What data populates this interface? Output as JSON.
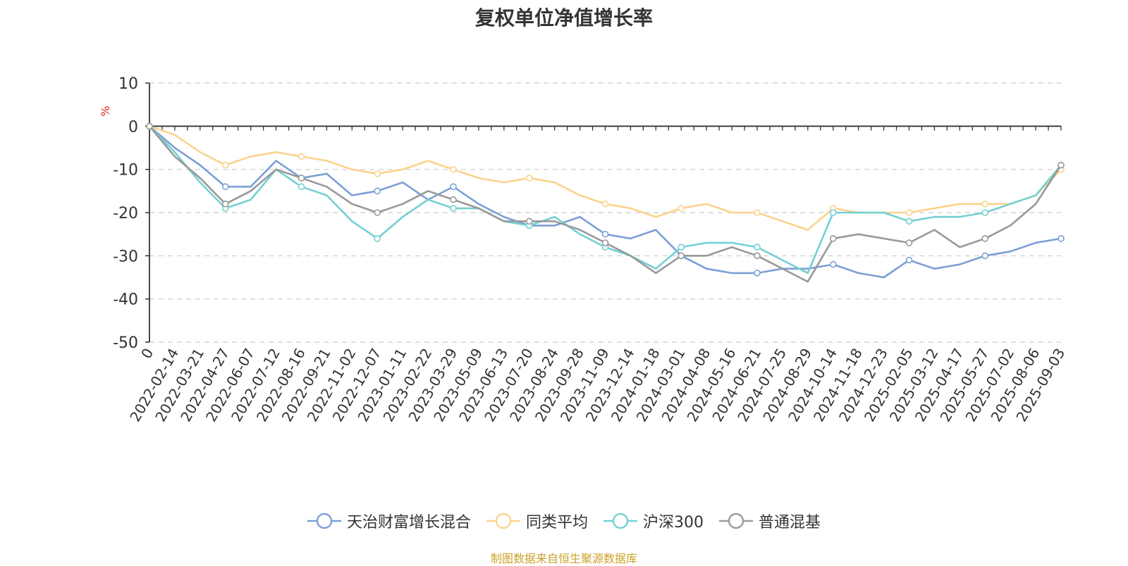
{
  "chart_data": {
    "type": "line",
    "title": "复权单位净值增长率",
    "ylabel": "%",
    "source": "制图数据来自恒生聚源数据库",
    "ylim": [
      -50,
      10
    ],
    "yticks": [
      10,
      0,
      -10,
      -20,
      -30,
      -40,
      -50
    ],
    "grid": true,
    "legend_position": "bottom",
    "x_ticks": [
      "0",
      "2022-02-14",
      "2022-03-21",
      "2022-04-27",
      "2022-06-07",
      "2022-07-12",
      "2022-08-16",
      "2022-09-21",
      "2022-11-02",
      "2022-12-07",
      "2023-01-11",
      "2023-02-22",
      "2023-03-29",
      "2023-05-09",
      "2023-06-13",
      "2023-07-20",
      "2023-08-24",
      "2023-09-28",
      "2023-11-09",
      "2023-12-14",
      "2024-01-18",
      "2024-03-01",
      "2024-04-08",
      "2024-05-16",
      "2024-06-21",
      "2024-07-25",
      "2024-08-29",
      "2024-10-14",
      "2024-11-18",
      "2024-12-23",
      "2025-02-05",
      "2025-03-12",
      "2025-04-17",
      "2025-05-27",
      "2025-07-02",
      "2025-08-06",
      "2025-09-03"
    ],
    "series": [
      {
        "name": "天治财富增长混合",
        "color": "#7b9fd6",
        "values": [
          0,
          -5,
          -9,
          -14,
          -14,
          -8,
          -12,
          -11,
          -16,
          -15,
          -13,
          -17,
          -14,
          -18,
          -21,
          -23,
          -23,
          -21,
          -25,
          -26,
          -24,
          -30,
          -33,
          -34,
          -34,
          -33,
          -33,
          -32,
          -34,
          -35,
          -31,
          -33,
          -32,
          -30,
          -29,
          -27,
          -26
        ]
      },
      {
        "name": "同类平均",
        "color": "#fcd28c",
        "values": [
          0,
          -2,
          -6,
          -9,
          -7,
          -6,
          -7,
          -8,
          -10,
          -11,
          -10,
          -8,
          -10,
          -12,
          -13,
          -12,
          -13,
          -16,
          -18,
          -19,
          -21,
          -19,
          -18,
          -20,
          -20,
          -22,
          -24,
          -19,
          -20,
          -20,
          -20,
          -19,
          -18,
          -18,
          -18,
          -16,
          -10
        ]
      },
      {
        "name": "沪深300",
        "color": "#73d0d2",
        "values": [
          0,
          -6,
          -13,
          -19,
          -17,
          -10,
          -14,
          -16,
          -22,
          -26,
          -21,
          -17,
          -19,
          -19,
          -22,
          -23,
          -21,
          -25,
          -28,
          -30,
          -33,
          -28,
          -27,
          -27,
          -28,
          -31,
          -34,
          -20,
          -20,
          -20,
          -22,
          -21,
          -21,
          -20,
          -18,
          -16,
          -9
        ]
      },
      {
        "name": "普通混基",
        "color": "#999999",
        "values": [
          0,
          -7,
          -12,
          -18,
          -15,
          -10,
          -12,
          -14,
          -18,
          -20,
          -18,
          -15,
          -17,
          -19,
          -22,
          -22,
          -22,
          -24,
          -27,
          -30,
          -34,
          -30,
          -30,
          -28,
          -30,
          -33,
          -36,
          -26,
          -25,
          -26,
          -27,
          -24,
          -28,
          -26,
          -23,
          -18,
          -9
        ]
      }
    ]
  }
}
